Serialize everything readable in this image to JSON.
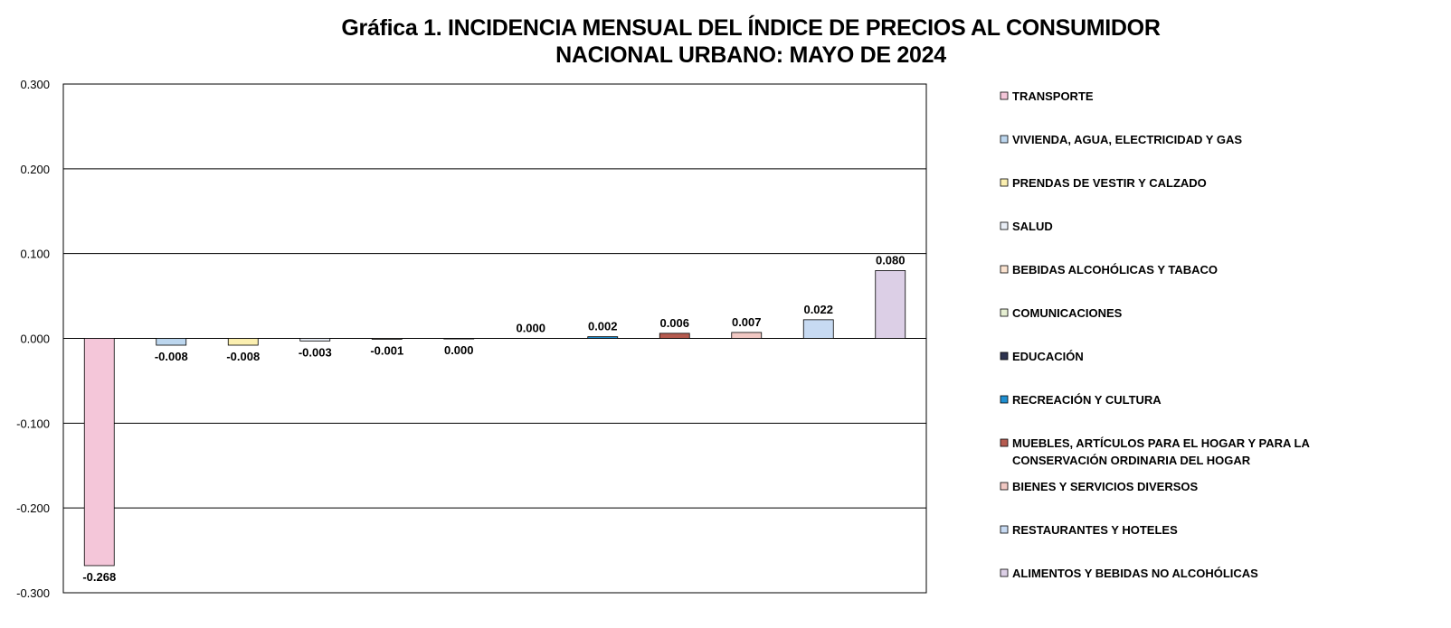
{
  "title_line1": "Gráfica 1.  INCIDENCIA MENSUAL  DEL ÍNDICE DE PRECIOS AL CONSUMIDOR",
  "title_line2": "NACIONAL URBANO: MAYO DE 2024",
  "chart_data": {
    "type": "bar",
    "title": "Gráfica 1.  INCIDENCIA MENSUAL  DEL ÍNDICE DE PRECIOS AL CONSUMIDOR NACIONAL URBANO: MAYO DE 2024",
    "ylim": [
      -0.3,
      0.3
    ],
    "yticks": [
      "0.300",
      "0.200",
      "0.100",
      "0.000",
      "-0.100",
      "-0.200",
      "-0.300"
    ],
    "ytick_values": [
      0.3,
      0.2,
      0.1,
      0.0,
      -0.1,
      -0.2,
      -0.3
    ],
    "grid": true,
    "legend_position": "right",
    "series": [
      {
        "name": "TRANSPORTE",
        "value": -0.268,
        "label": "-0.268",
        "color": "#f4c6d9"
      },
      {
        "name": "VIVIENDA, AGUA, ELECTRICIDAD Y GAS",
        "value": -0.008,
        "label": "-0.008",
        "color": "#bcd6ee"
      },
      {
        "name": "PRENDAS DE VESTIR Y CALZADO",
        "value": -0.008,
        "label": "-0.008",
        "color": "#fbefb0"
      },
      {
        "name": "SALUD",
        "value": -0.003,
        "label": "-0.003",
        "color": "#e9eef6"
      },
      {
        "name": "BEBIDAS ALCOHÓLICAS Y TABACO",
        "value": -0.001,
        "label": "-0.001",
        "color": "#fbe3d0"
      },
      {
        "name": "COMUNICACIONES",
        "value": -0.0004,
        "label": "0.000",
        "color": "#e6efd2"
      },
      {
        "name": "EDUCACIÓN",
        "value": 0.0,
        "label": "0.000",
        "color": "#2e3350"
      },
      {
        "name": "RECREACIÓN Y CULTURA",
        "value": 0.002,
        "label": "0.002",
        "color": "#1f8fd1"
      },
      {
        "name": "MUEBLES, ARTÍCULOS PARA EL HOGAR Y PARA LA CONSERVACIÓN ORDINARIA DEL HOGAR",
        "value": 0.006,
        "label": "0.006",
        "color": "#b55b4f"
      },
      {
        "name": "BIENES Y SERVICIOS DIVERSOS",
        "value": 0.007,
        "label": "0.007",
        "color": "#f1c8c3"
      },
      {
        "name": "RESTAURANTES Y HOTELES",
        "value": 0.022,
        "label": "0.022",
        "color": "#c7daf2"
      },
      {
        "name": "ALIMENTOS Y BEBIDAS NO ALCOHÓLICAS",
        "value": 0.08,
        "label": "0.080",
        "color": "#dccfe6"
      }
    ]
  }
}
